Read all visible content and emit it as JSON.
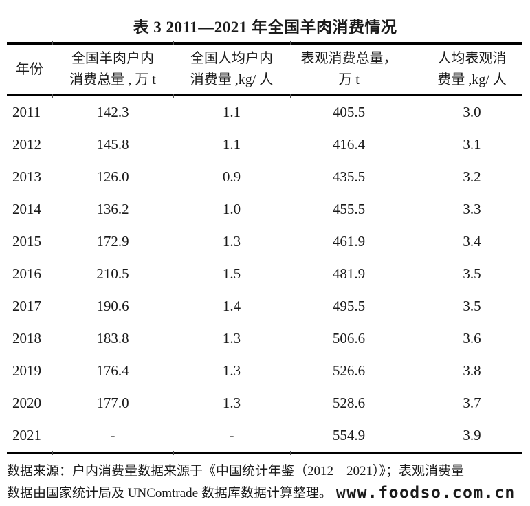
{
  "title": "表 3 2011—2021 年全国羊肉消费情况",
  "table": {
    "columns": [
      {
        "line1": "年份",
        "line2": ""
      },
      {
        "line1": "全国羊肉户内",
        "line2": "消费总量 , 万 t"
      },
      {
        "line1": "全国人均户内",
        "line2": "消费量 ,kg/ 人"
      },
      {
        "line1": "表观消费总量，",
        "line2": "万 t"
      },
      {
        "line1": "人均表观消",
        "line2": "费量 ,kg/ 人"
      }
    ],
    "rows": [
      [
        "2011",
        "142.3",
        "1.1",
        "405.5",
        "3.0"
      ],
      [
        "2012",
        "145.8",
        "1.1",
        "416.4",
        "3.1"
      ],
      [
        "2013",
        "126.0",
        "0.9",
        "435.5",
        "3.2"
      ],
      [
        "2014",
        "136.2",
        "1.0",
        "455.5",
        "3.3"
      ],
      [
        "2015",
        "172.9",
        "1.3",
        "461.9",
        "3.4"
      ],
      [
        "2016",
        "210.5",
        "1.5",
        "481.9",
        "3.5"
      ],
      [
        "2017",
        "190.6",
        "1.4",
        "495.5",
        "3.5"
      ],
      [
        "2018",
        "183.8",
        "1.3",
        "506.6",
        "3.6"
      ],
      [
        "2019",
        "176.4",
        "1.3",
        "526.6",
        "3.8"
      ],
      [
        "2020",
        "177.0",
        "1.3",
        "528.6",
        "3.7"
      ],
      [
        "2021",
        "-",
        "-",
        "554.9",
        "3.9"
      ]
    ]
  },
  "footer": {
    "line1": "数据来源：户内消费量数据来源于《中国统计年鉴（2012—2021）》；表观消费量",
    "line2": "数据由国家统计局及 UNComtrade 数据库数据计算整理。",
    "watermark": "www.foodso.com.cn"
  },
  "colors": {
    "text": "#1b1b1b",
    "rule": "#000000",
    "background": "#ffffff"
  }
}
